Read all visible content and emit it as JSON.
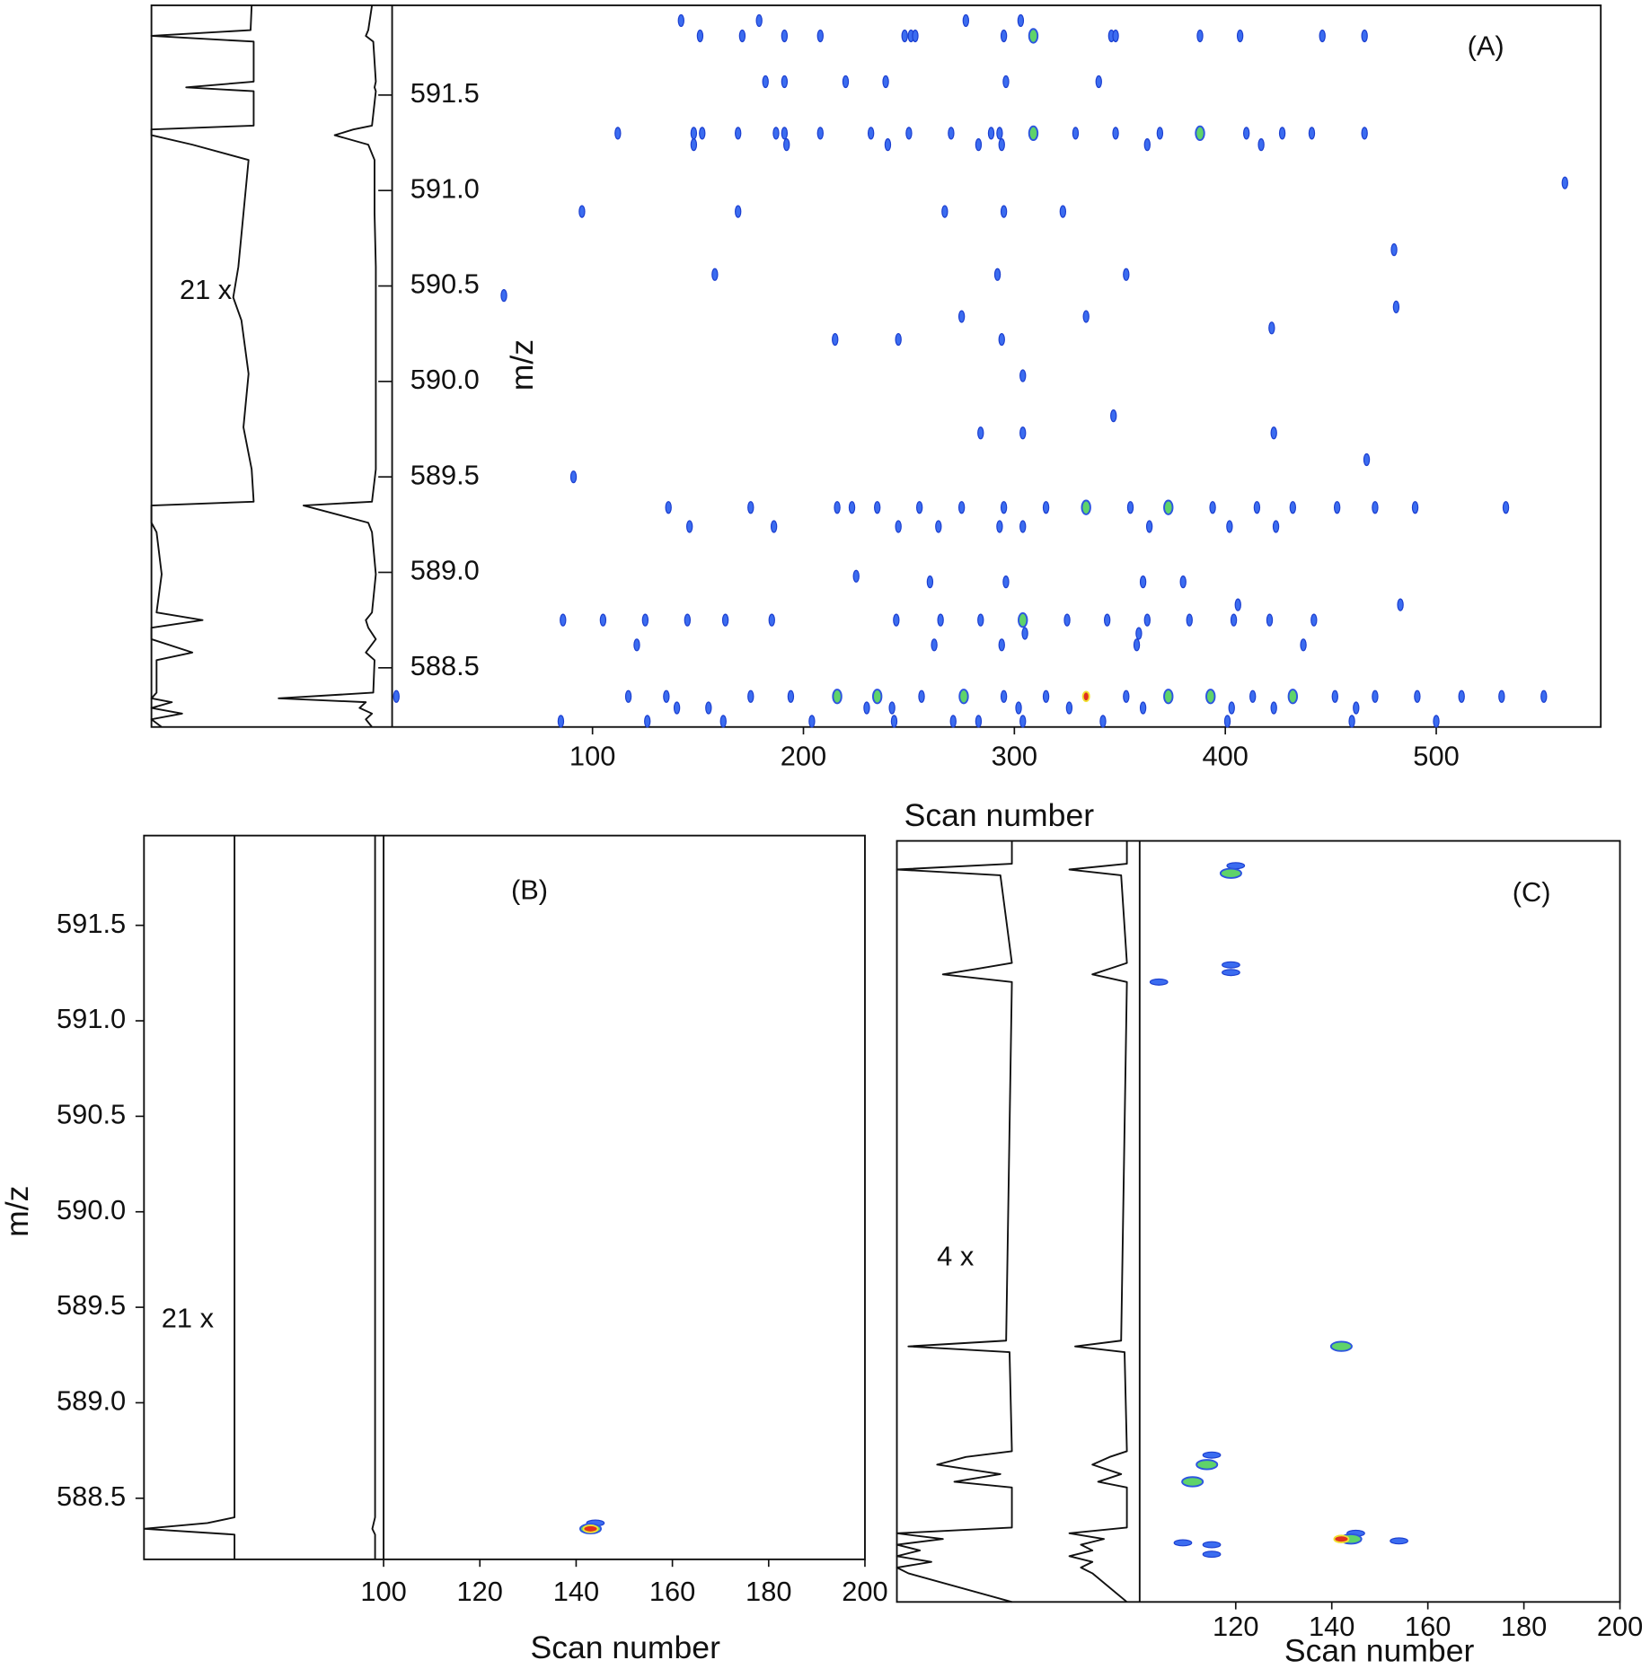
{
  "chart_data": [
    {
      "type": "contour",
      "label": "(A)",
      "x_label": "Scan number",
      "y_label": "m/z",
      "side_annotation": "21 x",
      "xlim": [
        5,
        578
      ],
      "ylim": [
        588.19,
        591.97
      ],
      "xticks": [
        100,
        200,
        300,
        400,
        500
      ],
      "yticks": [
        588.5,
        {
          "value": 589,
          "label": "589.0"
        },
        589.5,
        {
          "value": 590,
          "label": "590.0"
        },
        590.5,
        {
          "value": 591,
          "label": "591.0"
        },
        591.5
      ],
      "side_mz": [
        591.97,
        591.84,
        591.81,
        591.78,
        591.57,
        591.54,
        591.52,
        591.34,
        591.32,
        591.29,
        591.24,
        591.16,
        590.88,
        590.6,
        590.44,
        590.32,
        590.04,
        589.76,
        589.54,
        589.37,
        589.35,
        589.26,
        589.21,
        588.99,
        588.79,
        588.75,
        588.71,
        588.65,
        588.58,
        588.54,
        588.37,
        588.34,
        588.32,
        588.29,
        588.26,
        588.23,
        588.19
      ],
      "side_traces": [
        {
          "values": [
            0.02,
            0.03,
            1,
            0,
            0,
            0.66,
            0,
            0,
            1,
            1,
            0.6,
            0.05,
            0.1,
            0.15,
            0.2,
            0.12,
            0.05,
            0.1,
            0.02,
            0,
            1,
            1,
            0.95,
            0.9,
            0.95,
            0.5,
            1,
            1,
            0.6,
            0.95,
            0.95,
            1,
            0.8,
            1,
            0.7,
            1,
            0.9
          ]
        },
        {
          "values": [
            0.05,
            0.08,
            0.1,
            0.04,
            0.02,
            0.03,
            0.02,
            0.05,
            0.2,
            0.35,
            0.08,
            0.03,
            0.03,
            0.02,
            0.02,
            0.02,
            0.02,
            0.02,
            0.02,
            0.05,
            0.6,
            0.08,
            0.05,
            0.02,
            0.05,
            0.1,
            0.08,
            0.02,
            0.1,
            0.03,
            0.04,
            0.8,
            0.1,
            0.15,
            0.05,
            0.1,
            0.05
          ]
        }
      ],
      "series": [
        {
          "color": "#3b6cf0",
          "rows": [
            {
              "y": 591.89,
              "x": [
                142,
                179,
                277,
                303
              ]
            },
            {
              "y": 591.81,
              "x": [
                151,
                171,
                191,
                208,
                248,
                251,
                253,
                295,
                346,
                348,
                388,
                407,
                446,
                466
              ]
            },
            {
              "y": 591.57,
              "x": [
                182,
                191,
                220,
                239,
                296,
                340
              ]
            },
            {
              "y": 591.3,
              "x": [
                112,
                148,
                152,
                169,
                187,
                191,
                208,
                232,
                250,
                270,
                289,
                293,
                329,
                348,
                369,
                410,
                427,
                441,
                466
              ]
            },
            {
              "y": 591.24,
              "x": [
                148,
                192,
                240,
                283,
                294,
                363,
                417
              ]
            },
            {
              "y": 591.04,
              "x": [
                561
              ]
            },
            {
              "y": 590.89,
              "x": [
                95,
                169,
                267,
                295,
                323
              ]
            },
            {
              "y": 590.69,
              "x": [
                480
              ]
            },
            {
              "y": 590.56,
              "x": [
                158,
                292,
                353
              ]
            },
            {
              "y": 590.45,
              "x": [
                58
              ]
            },
            {
              "y": 590.39,
              "x": [
                481
              ]
            },
            {
              "y": 590.34,
              "x": [
                275,
                334
              ]
            },
            {
              "y": 590.28,
              "x": [
                422
              ]
            },
            {
              "y": 590.22,
              "x": [
                215,
                245,
                294
              ]
            },
            {
              "y": 590.03,
              "x": [
                304
              ]
            },
            {
              "y": 589.82,
              "x": [
                347
              ]
            },
            {
              "y": 589.73,
              "x": [
                284,
                304,
                423
              ]
            },
            {
              "y": 589.59,
              "x": [
                467
              ]
            },
            {
              "y": 589.5,
              "x": [
                91
              ]
            },
            {
              "y": 589.34,
              "x": [
                136,
                175,
                216,
                223,
                235,
                255,
                275,
                295,
                315,
                355,
                394,
                415,
                432,
                453,
                471,
                490,
                533
              ]
            },
            {
              "y": 589.24,
              "x": [
                146,
                186,
                245,
                264,
                293,
                304,
                364,
                402,
                424
              ]
            },
            {
              "y": 588.98,
              "x": [
                225
              ]
            },
            {
              "y": 588.95,
              "x": [
                260,
                296,
                361,
                380
              ]
            },
            {
              "y": 588.83,
              "x": [
                406,
                483
              ]
            },
            {
              "y": 588.75,
              "x": [
                86,
                105,
                125,
                145,
                163,
                185,
                244,
                265,
                284,
                325,
                344,
                363,
                383,
                404,
                421,
                442
              ]
            },
            {
              "y": 588.68,
              "x": [
                305,
                359
              ]
            },
            {
              "y": 588.62,
              "x": [
                121,
                262,
                294,
                358,
                437
              ]
            },
            {
              "y": 588.35,
              "x": [
                7,
                117,
                135,
                175,
                194,
                256,
                295,
                315,
                353,
                413,
                452,
                471,
                491,
                512,
                531,
                551
              ]
            },
            {
              "y": 588.29,
              "x": [
                140,
                155,
                230,
                242,
                302,
                326,
                361,
                403,
                423,
                462
              ]
            },
            {
              "y": 588.22,
              "x": [
                85,
                126,
                162,
                204,
                243,
                271,
                283,
                304,
                342,
                401,
                460,
                500
              ]
            }
          ]
        },
        {
          "color": "#5fd36a",
          "rows": [
            {
              "y": 591.81,
              "x": [
                309
              ]
            },
            {
              "y": 591.3,
              "x": [
                309,
                388
              ]
            },
            {
              "y": 589.34,
              "x": [
                334,
                373
              ]
            },
            {
              "y": 588.75,
              "x": [
                304
              ]
            },
            {
              "y": 588.35,
              "x": [
                216,
                235,
                276,
                373,
                393,
                432
              ]
            }
          ]
        },
        {
          "color": "#e03020",
          "rows": [
            {
              "y": 588.35,
              "x": [
                334
              ]
            }
          ]
        }
      ]
    },
    {
      "type": "contour",
      "label": "(B)",
      "x_label": "Scan number",
      "y_label": "m/z",
      "side_annotation": "21 x",
      "xlim": [
        100,
        200
      ],
      "ylim": [
        588.18,
        591.97
      ],
      "xticks": [
        100,
        120,
        140,
        160,
        180,
        200
      ],
      "yticks": [
        588.5,
        {
          "value": 589,
          "label": "589.0"
        },
        589.5,
        {
          "value": 590,
          "label": "590.0"
        },
        590.5,
        {
          "value": 591,
          "label": "591.0"
        },
        591.5
      ],
      "side_mz": [
        591.97,
        588.4,
        588.37,
        588.34,
        588.31,
        588.18
      ],
      "side_traces": [
        {
          "values": [
            0,
            0,
            0.3,
            1,
            0,
            0
          ]
        },
        {
          "values": [
            0,
            0,
            0.01,
            0.02,
            0,
            0
          ]
        }
      ],
      "series": [
        {
          "color": "#3b6cf0",
          "rows": [
            {
              "y": 588.37,
              "x": [
                144
              ]
            }
          ]
        },
        {
          "color": "#5fd36a",
          "rows": [
            {
              "y": 588.34,
              "x": [
                143
              ]
            }
          ]
        },
        {
          "color": "#e03020",
          "rows": [
            {
              "y": 588.34,
              "x": [
                143
              ]
            }
          ]
        }
      ]
    },
    {
      "type": "contour",
      "label": "(C)",
      "x_label": "Scan number",
      "side_annotation": "4 x",
      "xlim": [
        100,
        200
      ],
      "ylim": [
        587.95,
        591.94
      ],
      "xticks": [
        120,
        140,
        160,
        180,
        200
      ],
      "side_mz": [
        591.94,
        591.82,
        591.79,
        591.76,
        591.3,
        591.27,
        591.24,
        591.2,
        589.32,
        589.29,
        589.26,
        588.74,
        588.71,
        588.67,
        588.62,
        588.58,
        588.55,
        588.34,
        588.31,
        588.28,
        588.25,
        588.22,
        588.19,
        588.16,
        588.13,
        588.1,
        587.95
      ],
      "side_traces": [
        {
          "values": [
            0,
            0,
            1,
            0.1,
            0,
            0.3,
            0.6,
            0,
            0.05,
            0.9,
            0.02,
            0,
            0.4,
            0.65,
            0.1,
            0.5,
            0,
            0,
            1,
            0.6,
            1,
            0.8,
            1,
            0.7,
            1,
            0.9,
            0
          ]
        },
        {
          "values": [
            0,
            0,
            0.5,
            0.05,
            0,
            0.15,
            0.3,
            0,
            0.05,
            0.45,
            0.02,
            0,
            0.15,
            0.3,
            0.05,
            0.25,
            0,
            0,
            0.5,
            0.2,
            0.4,
            0.3,
            0.5,
            0.3,
            0.4,
            0.3,
            0
          ]
        }
      ],
      "series": [
        {
          "color": "#3b6cf0",
          "rows": [
            {
              "y": 591.81,
              "x": [
                120
              ]
            },
            {
              "y": 591.29,
              "x": [
                119
              ]
            },
            {
              "y": 591.25,
              "x": [
                119
              ]
            },
            {
              "y": 591.2,
              "x": [
                104
              ]
            },
            {
              "y": 588.72,
              "x": [
                115
              ]
            },
            {
              "y": 588.31,
              "x": [
                145
              ]
            },
            {
              "y": 588.27,
              "x": [
                154
              ]
            },
            {
              "y": 588.26,
              "x": [
                109
              ]
            },
            {
              "y": 588.25,
              "x": [
                115
              ]
            },
            {
              "y": 588.2,
              "x": [
                115
              ]
            }
          ]
        },
        {
          "color": "#5fd36a",
          "rows": [
            {
              "y": 591.77,
              "x": [
                119
              ]
            },
            {
              "y": 589.29,
              "x": [
                142
              ]
            },
            {
              "y": 588.67,
              "x": [
                114
              ]
            },
            {
              "y": 588.58,
              "x": [
                111
              ]
            },
            {
              "y": 588.28,
              "x": [
                144
              ]
            }
          ]
        },
        {
          "color": "#e03020",
          "rows": [
            {
              "y": 588.28,
              "x": [
                142
              ]
            }
          ]
        }
      ]
    }
  ]
}
